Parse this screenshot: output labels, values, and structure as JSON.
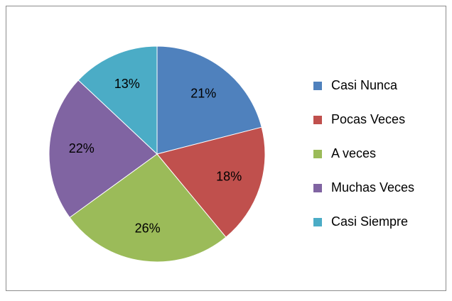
{
  "chart_data": {
    "type": "pie",
    "categories": [
      "Casi Nunca",
      "Pocas Veces",
      "A veces",
      "Muchas Veces",
      "Casi Siempre"
    ],
    "values": [
      21,
      18,
      26,
      22,
      13
    ],
    "value_labels": [
      "21%",
      "18%",
      "26%",
      "22%",
      "13%"
    ],
    "colors": [
      "#4f81bd",
      "#c0504d",
      "#9bbb59",
      "#8064a2",
      "#4bacc6"
    ],
    "legend": "right"
  }
}
